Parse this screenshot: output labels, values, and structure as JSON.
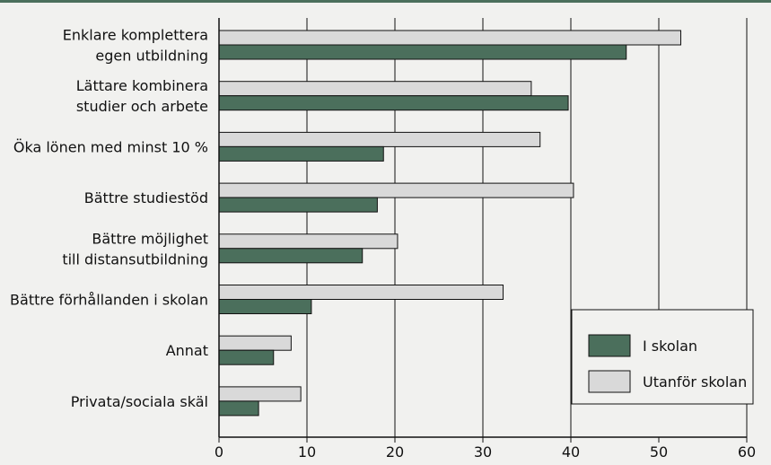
{
  "chart_data": {
    "type": "bar",
    "orientation": "horizontal",
    "categories": [
      [
        "Enklare komplettera",
        "egen utbildning"
      ],
      [
        "Lättare kombinera",
        "studier och arbete"
      ],
      [
        "Öka lönen med minst 10 %"
      ],
      [
        "Bättre studiestöd"
      ],
      [
        "Bättre möjlighet",
        "till distansutbildning"
      ],
      [
        "Bättre förhållanden i skolan"
      ],
      [
        "Annat"
      ],
      [
        "Privata/sociala skäl"
      ]
    ],
    "series": [
      {
        "name": "Utanför skolan",
        "color": "#d9d9d9",
        "values": [
          52.5,
          35.5,
          36.5,
          40.3,
          20.3,
          32.3,
          8.2,
          9.3
        ]
      },
      {
        "name": "I skolan",
        "color": "#4b6f5c",
        "values": [
          46.3,
          39.7,
          18.7,
          18.0,
          16.3,
          10.5,
          6.2,
          4.5
        ]
      }
    ],
    "xlim": [
      0,
      60
    ],
    "xticks": [
      0,
      10,
      20,
      30,
      40,
      50,
      60
    ],
    "grid": true,
    "legend": {
      "position": "bottom-right",
      "order": [
        "I skolan",
        "Utanför skolan"
      ]
    },
    "title": "",
    "xlabel": "",
    "ylabel": ""
  }
}
